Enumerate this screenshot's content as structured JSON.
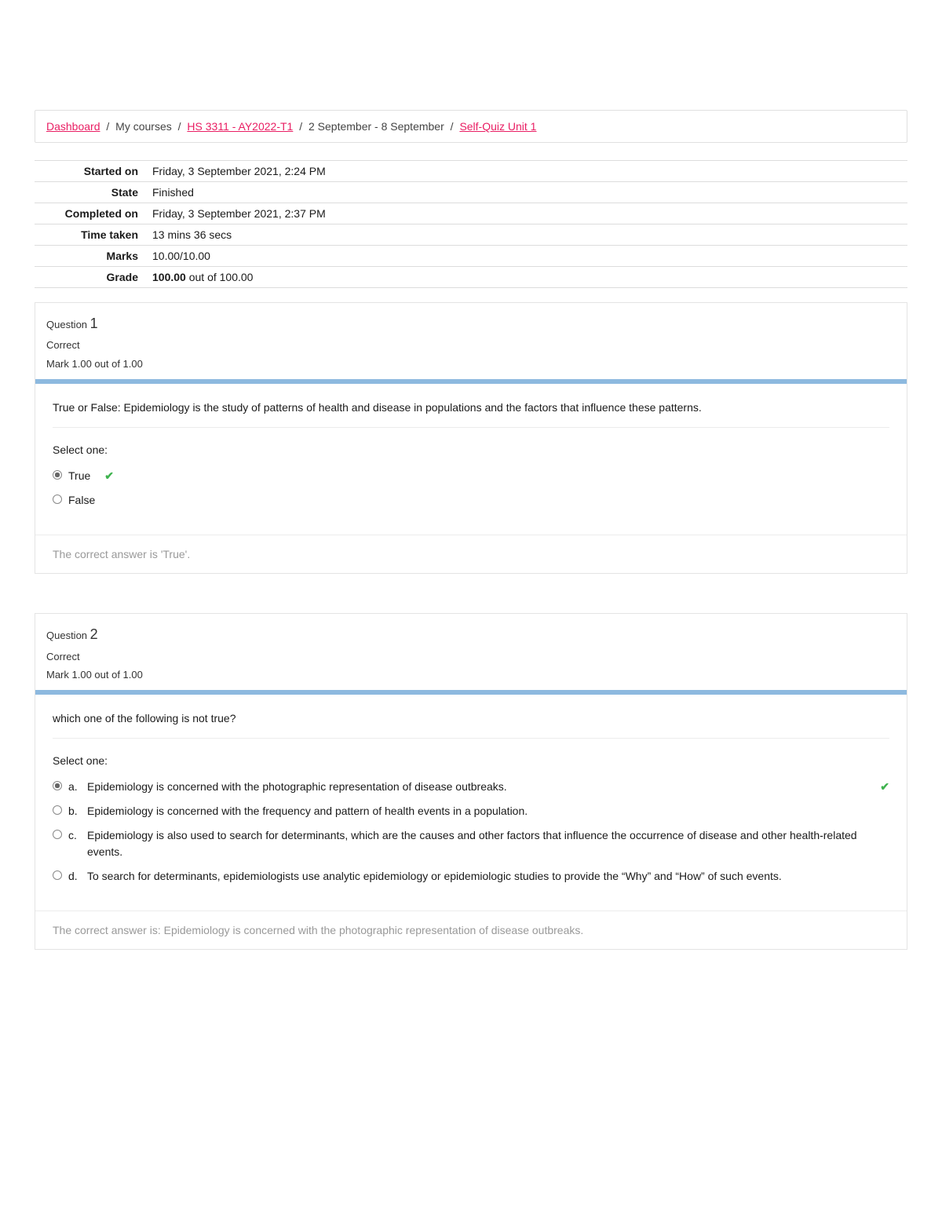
{
  "colors": {
    "link": "#e91e63",
    "divider": "#8db9df",
    "check": "#3fb34f",
    "border": "#e4e4e4",
    "feedback_text": "#999999"
  },
  "breadcrumb": {
    "items": [
      {
        "label": "Dashboard",
        "link": true
      },
      {
        "label": "My courses",
        "link": false
      },
      {
        "label": "HS 3311 - AY2022-T1",
        "link": true
      },
      {
        "label": "2 September - 8 September",
        "link": false
      },
      {
        "label": "Self-Quiz Unit 1",
        "link": true
      }
    ],
    "separator": "/"
  },
  "summary": {
    "rows": [
      {
        "label": "Started on",
        "value": "Friday, 3 September 2021, 2:24 PM"
      },
      {
        "label": "State",
        "value": "Finished"
      },
      {
        "label": "Completed on",
        "value": "Friday, 3 September 2021, 2:37 PM"
      },
      {
        "label": "Time taken",
        "value": "13 mins 36 secs"
      },
      {
        "label": "Marks",
        "value": "10.00/10.00"
      },
      {
        "label": "Grade",
        "value_bold": "100.00",
        "value_rest": " out of 100.00"
      }
    ]
  },
  "question_label": "Question",
  "select_one": "Select one:",
  "questions": [
    {
      "number": "1",
      "status": "Correct",
      "mark": "Mark 1.00 out of 1.00",
      "text": "True or False: Epidemiology is the study of patterns of health and disease in populations and the factors that influence these patterns.",
      "type": "truefalse",
      "options": [
        {
          "label": "True",
          "selected": true,
          "correct": true
        },
        {
          "label": "False",
          "selected": false,
          "correct": false
        }
      ],
      "feedback": "The correct answer is 'True'."
    },
    {
      "number": "2",
      "status": "Correct",
      "mark": "Mark 1.00 out of 1.00",
      "text": "which one of the following is not true?",
      "type": "multichoice",
      "options": [
        {
          "letter": "a.",
          "label": "Epidemiology is concerned with the photographic representation of disease outbreaks.",
          "selected": true,
          "correct": true
        },
        {
          "letter": "b.",
          "label": "Epidemiology is concerned with the frequency and pattern of health events in a population.",
          "selected": false,
          "correct": false
        },
        {
          "letter": "c.",
          "label": "Epidemiology is also used to search for determinants, which are the causes and other factors that influence the occurrence of disease and other health-related events.",
          "selected": false,
          "correct": false
        },
        {
          "letter": "d.",
          "label": "To search for determinants, epidemiologists use analytic epidemiology or epidemiologic studies to provide the “Why” and “How” of such events.",
          "selected": false,
          "correct": false
        }
      ],
      "feedback": "The correct answer is: Epidemiology is concerned with the photographic representation of disease outbreaks."
    }
  ]
}
